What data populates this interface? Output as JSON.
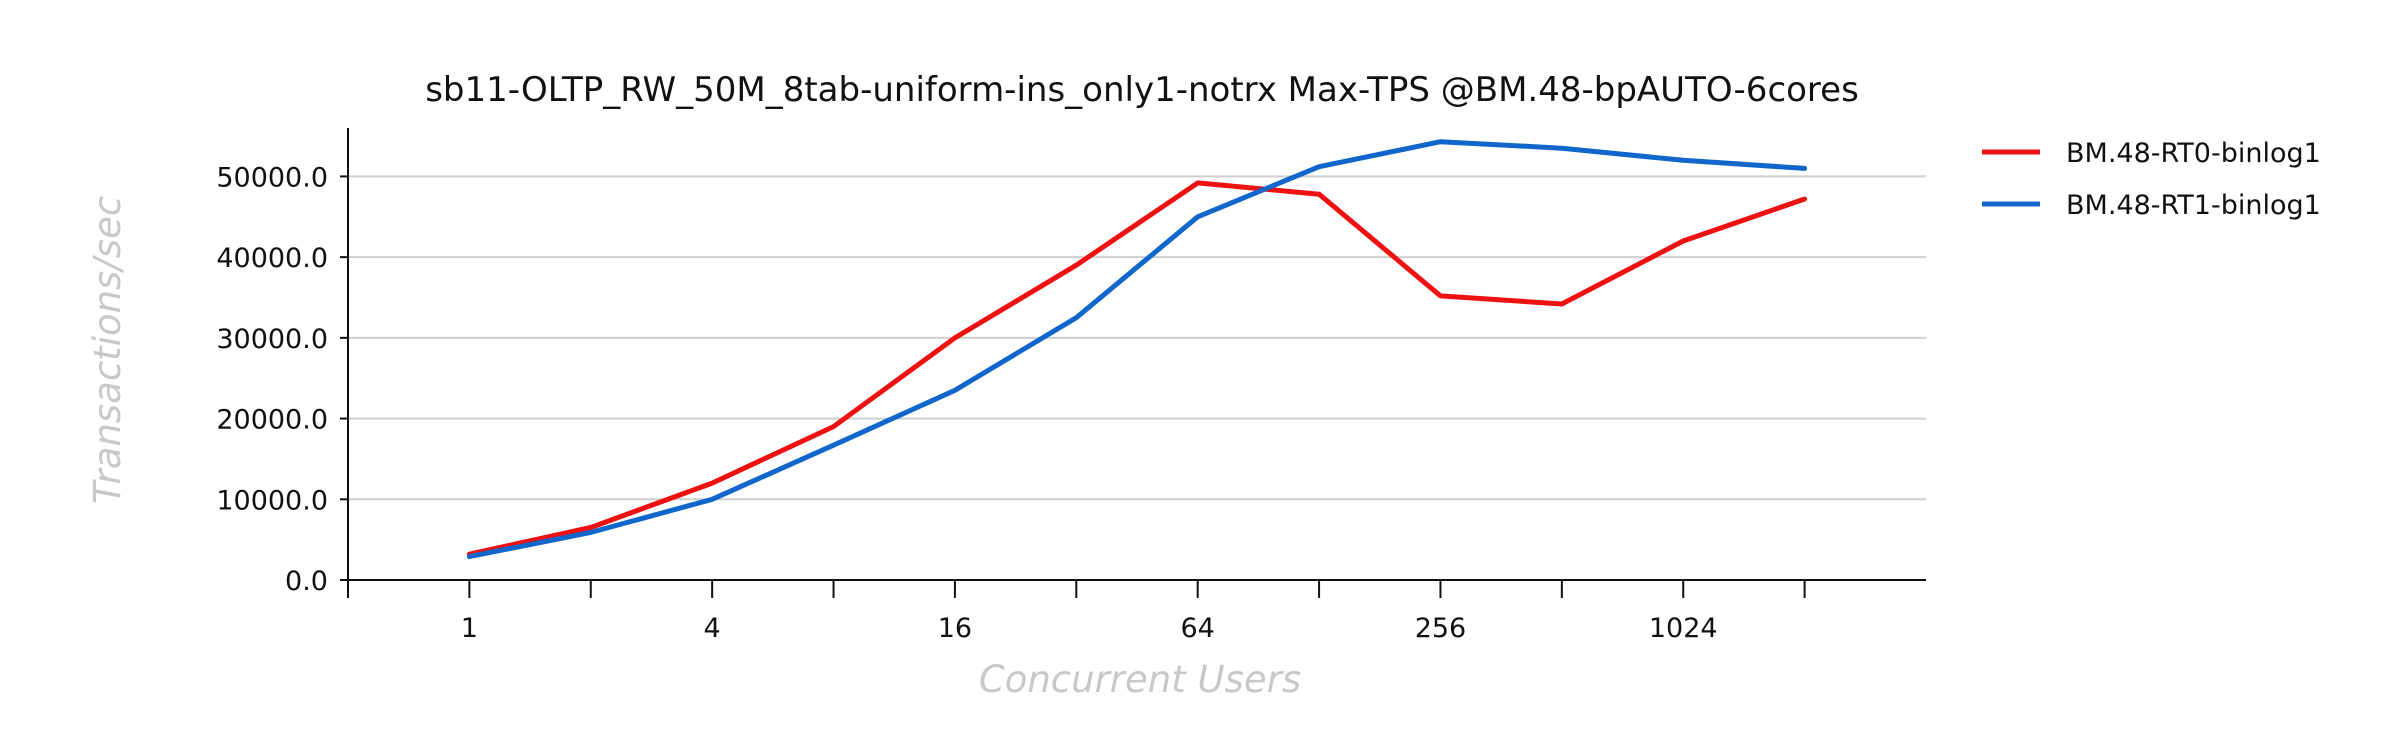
{
  "chart_data": {
    "type": "line",
    "title": "sb11-OLTP_RW_50M_8tab-uniform-ins_only1-notrx Max-TPS @BM.48-bpAUTO-6cores",
    "xlabel": "Concurrent Users",
    "ylabel": "Transactions/sec",
    "x": [
      1,
      2,
      4,
      8,
      16,
      32,
      64,
      128,
      256,
      512,
      1024,
      2048
    ],
    "x_tick_labels": [
      "1",
      "4",
      "16",
      "64",
      "256",
      "1024"
    ],
    "x_tick_values": [
      1,
      4,
      16,
      64,
      256,
      1024
    ],
    "x_scale": "log2",
    "xlim": [
      0.5,
      4096
    ],
    "ylim": [
      0,
      56000
    ],
    "y_ticks": [
      0,
      10000,
      20000,
      30000,
      40000,
      50000
    ],
    "y_tick_labels": [
      "0.0",
      "10000.0",
      "20000.0",
      "30000.0",
      "40000.0",
      "50000.0"
    ],
    "grid": "horizontal",
    "legend_position": "right-top",
    "series": [
      {
        "name": "BM.48-RT0-binlog1",
        "color": "#ee1111",
        "values": [
          3200,
          6500,
          12000,
          19000,
          30000,
          39000,
          49200,
          47800,
          35200,
          34200,
          42000,
          47200
        ]
      },
      {
        "name": "BM.48-RT1-binlog1",
        "color": "#1166cc",
        "values": [
          2900,
          5900,
          10000,
          16700,
          23500,
          32500,
          45000,
          51200,
          54300,
          53500,
          52000,
          51000
        ]
      }
    ]
  }
}
